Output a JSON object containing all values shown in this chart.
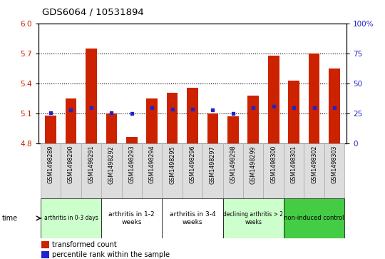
{
  "title": "GDS6064 / 10531894",
  "samples": [
    "GSM1498289",
    "GSM1498290",
    "GSM1498291",
    "GSM1498292",
    "GSM1498293",
    "GSM1498294",
    "GSM1498295",
    "GSM1498296",
    "GSM1498297",
    "GSM1498298",
    "GSM1498299",
    "GSM1498300",
    "GSM1498301",
    "GSM1498302",
    "GSM1498303"
  ],
  "bar_values": [
    5.08,
    5.25,
    5.75,
    5.1,
    4.87,
    5.25,
    5.31,
    5.36,
    5.1,
    5.07,
    5.28,
    5.68,
    5.43,
    5.7,
    5.55
  ],
  "percentile_values": [
    26,
    28,
    30,
    26,
    25,
    30,
    29,
    29,
    28,
    25,
    30,
    31,
    30,
    30,
    30
  ],
  "ylim_left": [
    4.8,
    6.0
  ],
  "ylim_right": [
    0,
    100
  ],
  "yticks_left": [
    4.8,
    5.1,
    5.4,
    5.7,
    6.0
  ],
  "yticks_right": [
    0,
    25,
    50,
    75,
    100
  ],
  "bar_color": "#cc2200",
  "dot_color": "#2222cc",
  "bar_bottom": 4.8,
  "groups": [
    {
      "label": "arthritis in 0-3 days",
      "start": 0,
      "end": 3,
      "color": "#ccffcc",
      "fontsize": 5.5
    },
    {
      "label": "arthritis in 1-2\nweeks",
      "start": 3,
      "end": 6,
      "color": "#ffffff",
      "fontsize": 6.5
    },
    {
      "label": "arthritis in 3-4\nweeks",
      "start": 6,
      "end": 9,
      "color": "#ffffff",
      "fontsize": 6.5
    },
    {
      "label": "declining arthritis > 2\nweeks",
      "start": 9,
      "end": 12,
      "color": "#ccffcc",
      "fontsize": 5.5
    },
    {
      "label": "non-induced control",
      "start": 12,
      "end": 15,
      "color": "#44cc44",
      "fontsize": 6.0
    }
  ],
  "time_label": "time",
  "legend_red": "transformed count",
  "legend_blue": "percentile rank within the sample",
  "dotted_lines": [
    5.1,
    5.4,
    5.7
  ],
  "bg_color": "#ffffff"
}
